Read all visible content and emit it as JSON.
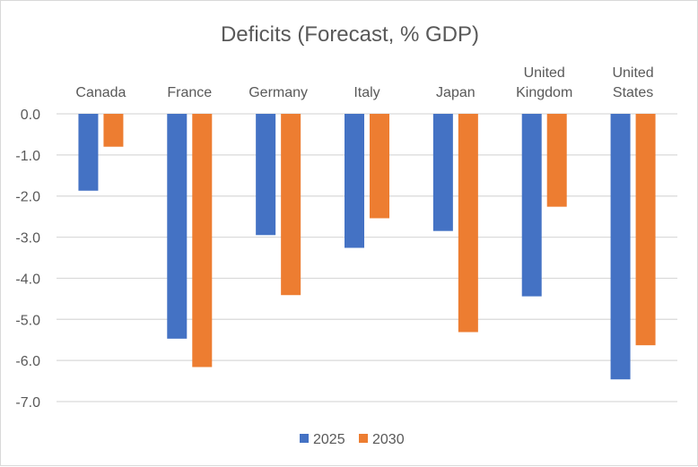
{
  "chart_data": {
    "type": "bar",
    "title": "Deficits (Forecast, % GDP)",
    "xlabel": "",
    "ylabel": "",
    "categories": [
      [
        "Canada"
      ],
      [
        "France"
      ],
      [
        "Germany"
      ],
      [
        "Italy"
      ],
      [
        "Japan"
      ],
      [
        "United",
        "Kingdom"
      ],
      [
        "United",
        "States"
      ]
    ],
    "category_names": [
      "Canada",
      "France",
      "Germany",
      "Italy",
      "Japan",
      "United Kingdom",
      "United States"
    ],
    "series": [
      {
        "name": "2025",
        "color": "#4472c4",
        "values": [
          -1.87,
          -5.47,
          -2.95,
          -3.26,
          -2.85,
          -4.44,
          -6.46
        ]
      },
      {
        "name": "2030",
        "color": "#ed7d31",
        "values": [
          -0.8,
          -6.16,
          -4.41,
          -2.54,
          -5.31,
          -2.26,
          -5.63
        ]
      }
    ],
    "ylim": [
      -7.0,
      0.0
    ],
    "yticks": [
      "0.0",
      "-1.0",
      "-2.0",
      "-3.0",
      "-4.0",
      "-5.0",
      "-6.0",
      "-7.0"
    ],
    "ytick_values": [
      0,
      -1,
      -2,
      -3,
      -4,
      -5,
      -6,
      -7
    ],
    "grid": true,
    "category_axis_position": "top",
    "legend_position": "bottom"
  }
}
